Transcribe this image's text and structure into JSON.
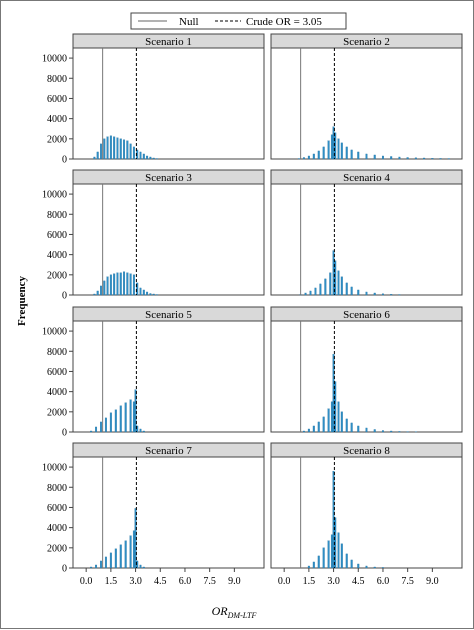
{
  "chart_data": {
    "type": "bar",
    "ylabel": "Frequency",
    "xlabel_main": "OR",
    "xlabel_sub": "DM-LTF",
    "legend": {
      "position": "top-center",
      "entries": [
        {
          "label": "Null",
          "style": "solid",
          "x": 1.0
        },
        {
          "label": "Crude OR = 3.05",
          "style": "dashed",
          "x": 3.05
        }
      ]
    },
    "xlim": [
      -0.8,
      10.8
    ],
    "ylim": [
      0,
      11000
    ],
    "xticks": [
      0.0,
      1.5,
      3.0,
      4.5,
      6.0,
      7.5,
      9.0
    ],
    "xtick_labels": [
      "0.0",
      "1.5",
      "3.0",
      "4.5",
      "6.0",
      "7.5",
      "9.0"
    ],
    "yticks": [
      0,
      2000,
      4000,
      6000,
      8000,
      10000
    ],
    "ytick_labels": [
      "0",
      "2000",
      "4000",
      "6000",
      "8000",
      "10000"
    ],
    "bin_width": 0.1,
    "panels": [
      {
        "title": "Scenario 1",
        "bins": [
          [
            0.5,
            200
          ],
          [
            0.7,
            700
          ],
          [
            0.9,
            1500
          ],
          [
            1.1,
            2000
          ],
          [
            1.3,
            2200
          ],
          [
            1.5,
            2300
          ],
          [
            1.7,
            2200
          ],
          [
            1.9,
            2100
          ],
          [
            2.1,
            2000
          ],
          [
            2.3,
            1900
          ],
          [
            2.5,
            1800
          ],
          [
            2.7,
            1500
          ],
          [
            2.9,
            1200
          ],
          [
            3.1,
            900
          ],
          [
            3.3,
            700
          ],
          [
            3.5,
            500
          ],
          [
            3.7,
            300
          ],
          [
            3.9,
            200
          ],
          [
            4.1,
            100
          ],
          [
            4.3,
            50
          ]
        ]
      },
      {
        "title": "Scenario 2",
        "bins": [
          [
            0.9,
            50
          ],
          [
            1.2,
            150
          ],
          [
            1.5,
            300
          ],
          [
            1.8,
            500
          ],
          [
            2.1,
            800
          ],
          [
            2.4,
            1200
          ],
          [
            2.7,
            1800
          ],
          [
            2.9,
            2400
          ],
          [
            3.0,
            3200
          ],
          [
            3.1,
            2600
          ],
          [
            3.3,
            2000
          ],
          [
            3.5,
            1600
          ],
          [
            3.8,
            1200
          ],
          [
            4.1,
            900
          ],
          [
            4.5,
            700
          ],
          [
            5.0,
            500
          ],
          [
            5.5,
            400
          ],
          [
            6.0,
            300
          ],
          [
            6.5,
            250
          ],
          [
            7.0,
            200
          ],
          [
            7.5,
            150
          ],
          [
            8.0,
            120
          ],
          [
            8.5,
            100
          ],
          [
            9.0,
            80
          ],
          [
            9.5,
            60
          ],
          [
            10.0,
            50
          ]
        ]
      },
      {
        "title": "Scenario 3",
        "bins": [
          [
            0.5,
            100
          ],
          [
            0.7,
            400
          ],
          [
            0.9,
            900
          ],
          [
            1.1,
            1400
          ],
          [
            1.3,
            1800
          ],
          [
            1.5,
            2000
          ],
          [
            1.7,
            2100
          ],
          [
            1.9,
            2200
          ],
          [
            2.1,
            2200
          ],
          [
            2.3,
            2300
          ],
          [
            2.5,
            2200
          ],
          [
            2.7,
            2100
          ],
          [
            2.9,
            2000
          ],
          [
            3.1,
            1200
          ],
          [
            3.3,
            700
          ],
          [
            3.5,
            500
          ],
          [
            3.7,
            300
          ],
          [
            3.9,
            150
          ],
          [
            4.1,
            100
          ],
          [
            4.3,
            50
          ]
        ]
      },
      {
        "title": "Scenario 4",
        "bins": [
          [
            1.0,
            50
          ],
          [
            1.3,
            200
          ],
          [
            1.6,
            400
          ],
          [
            1.9,
            700
          ],
          [
            2.2,
            1100
          ],
          [
            2.5,
            1600
          ],
          [
            2.8,
            2200
          ],
          [
            3.0,
            4400
          ],
          [
            3.1,
            3400
          ],
          [
            3.3,
            2400
          ],
          [
            3.5,
            1800
          ],
          [
            3.8,
            1200
          ],
          [
            4.1,
            800
          ],
          [
            4.5,
            500
          ],
          [
            5.0,
            300
          ],
          [
            5.5,
            200
          ],
          [
            6.0,
            120
          ],
          [
            6.5,
            80
          ],
          [
            7.0,
            50
          ]
        ]
      },
      {
        "title": "Scenario 5",
        "bins": [
          [
            0.3,
            100
          ],
          [
            0.6,
            500
          ],
          [
            0.9,
            1000
          ],
          [
            1.2,
            1400
          ],
          [
            1.5,
            1900
          ],
          [
            1.8,
            2200
          ],
          [
            2.1,
            2600
          ],
          [
            2.4,
            2900
          ],
          [
            2.7,
            3200
          ],
          [
            2.9,
            3000
          ],
          [
            3.0,
            4200
          ],
          [
            3.1,
            600
          ],
          [
            3.3,
            300
          ],
          [
            3.5,
            100
          ]
        ]
      },
      {
        "title": "Scenario 6",
        "bins": [
          [
            1.2,
            100
          ],
          [
            1.5,
            300
          ],
          [
            1.8,
            600
          ],
          [
            2.1,
            1000
          ],
          [
            2.4,
            1500
          ],
          [
            2.7,
            2300
          ],
          [
            2.9,
            3000
          ],
          [
            3.0,
            7700
          ],
          [
            3.1,
            5000
          ],
          [
            3.3,
            3000
          ],
          [
            3.5,
            2000
          ],
          [
            3.8,
            1300
          ],
          [
            4.1,
            900
          ],
          [
            4.5,
            600
          ],
          [
            5.0,
            400
          ],
          [
            5.5,
            250
          ],
          [
            6.0,
            150
          ],
          [
            6.5,
            100
          ],
          [
            7.0,
            60
          ],
          [
            7.5,
            40
          ],
          [
            8.0,
            30
          ]
        ]
      },
      {
        "title": "Scenario 7",
        "bins": [
          [
            0.3,
            100
          ],
          [
            0.6,
            300
          ],
          [
            0.9,
            700
          ],
          [
            1.2,
            1100
          ],
          [
            1.5,
            1500
          ],
          [
            1.8,
            1900
          ],
          [
            2.1,
            2300
          ],
          [
            2.4,
            2700
          ],
          [
            2.7,
            3200
          ],
          [
            2.9,
            3700
          ],
          [
            3.0,
            5900
          ],
          [
            3.1,
            700
          ],
          [
            3.3,
            300
          ],
          [
            3.5,
            100
          ]
        ]
      },
      {
        "title": "Scenario 8",
        "bins": [
          [
            1.5,
            200
          ],
          [
            1.8,
            600
          ],
          [
            2.1,
            1200
          ],
          [
            2.4,
            2000
          ],
          [
            2.7,
            2700
          ],
          [
            2.9,
            3300
          ],
          [
            3.0,
            9600
          ],
          [
            3.1,
            5000
          ],
          [
            3.3,
            3500
          ],
          [
            3.5,
            2400
          ],
          [
            3.8,
            1400
          ],
          [
            4.1,
            800
          ],
          [
            4.5,
            400
          ],
          [
            5.0,
            200
          ],
          [
            5.5,
            100
          ],
          [
            6.0,
            60
          ]
        ]
      }
    ]
  }
}
